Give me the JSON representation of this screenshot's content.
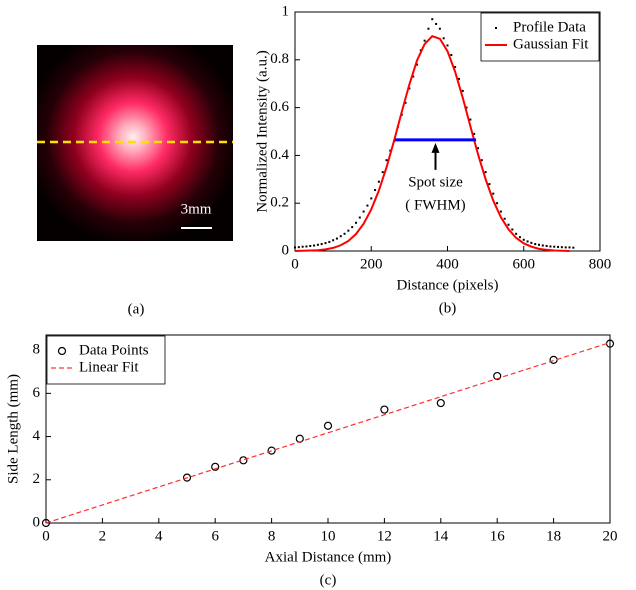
{
  "chart_data": [
    {
      "type": "image",
      "annotation": "3mm",
      "caption": "(a)",
      "line_color": "#ffe000"
    },
    {
      "type": "scatter",
      "xlabel": "Distance (pixels)",
      "ylabel": "Normalized Intensity (a.u.)",
      "caption": "(b)",
      "xlim": [
        0,
        800
      ],
      "xticks": [
        0,
        200,
        400,
        600,
        800
      ],
      "ylim": [
        0,
        1
      ],
      "yticks": [
        0,
        0.2,
        0.4,
        0.6,
        0.8,
        1
      ],
      "grid": false,
      "legend": "upper right",
      "series": [
        {
          "name": "Profile Data",
          "style": "dots",
          "color": "#000000",
          "x": [
            0,
            10,
            20,
            30,
            40,
            50,
            60,
            70,
            80,
            90,
            100,
            110,
            120,
            130,
            140,
            150,
            160,
            170,
            180,
            190,
            200,
            210,
            220,
            230,
            240,
            250,
            260,
            270,
            280,
            290,
            300,
            310,
            320,
            330,
            340,
            350,
            360,
            370,
            380,
            390,
            400,
            410,
            420,
            430,
            440,
            450,
            460,
            470,
            480,
            490,
            500,
            510,
            520,
            530,
            540,
            550,
            560,
            570,
            580,
            590,
            600,
            610,
            620,
            630,
            640,
            650,
            660,
            670,
            680,
            690,
            700,
            710,
            720,
            730
          ],
          "values": [
            0.015,
            0.016,
            0.018,
            0.019,
            0.021,
            0.023,
            0.026,
            0.029,
            0.033,
            0.038,
            0.045,
            0.052,
            0.062,
            0.072,
            0.085,
            0.1,
            0.118,
            0.14,
            0.165,
            0.19,
            0.22,
            0.255,
            0.29,
            0.33,
            0.38,
            0.42,
            0.46,
            0.52,
            0.57,
            0.62,
            0.68,
            0.73,
            0.78,
            0.84,
            0.88,
            0.93,
            0.97,
            0.95,
            0.93,
            0.89,
            0.86,
            0.82,
            0.77,
            0.72,
            0.67,
            0.6,
            0.55,
            0.49,
            0.43,
            0.38,
            0.33,
            0.28,
            0.24,
            0.2,
            0.165,
            0.135,
            0.11,
            0.09,
            0.072,
            0.058,
            0.047,
            0.04,
            0.034,
            0.029,
            0.026,
            0.023,
            0.021,
            0.019,
            0.018,
            0.017,
            0.016,
            0.015,
            0.015,
            0.014
          ]
        },
        {
          "name": "Gaussian Fit",
          "style": "line",
          "color": "#ff0000",
          "x": [
            0,
            20,
            40,
            60,
            80,
            100,
            120,
            140,
            160,
            180,
            200,
            220,
            240,
            260,
            280,
            300,
            320,
            340,
            360,
            380,
            400,
            420,
            440,
            460,
            480,
            500,
            520,
            540,
            560,
            580,
            600,
            620,
            640,
            660,
            680,
            700,
            720
          ],
          "values": [
            0.0,
            0.001,
            0.002,
            0.003,
            0.007,
            0.013,
            0.024,
            0.042,
            0.071,
            0.114,
            0.174,
            0.253,
            0.35,
            0.462,
            0.582,
            0.697,
            0.797,
            0.866,
            0.899,
            0.888,
            0.836,
            0.75,
            0.641,
            0.522,
            0.405,
            0.3,
            0.211,
            0.141,
            0.091,
            0.055,
            0.032,
            0.018,
            0.009,
            0.005,
            0.002,
            0.001,
            0.0
          ]
        }
      ],
      "fwhm": {
        "x": [
          262,
          475
        ],
        "values": [
          0.465,
          0.465
        ],
        "color": "#0000ff"
      },
      "annotation": [
        "Spot size",
        "( FWHM)"
      ]
    },
    {
      "type": "scatter",
      "xlabel": "Axial Distance (mm)",
      "ylabel": "Side Length (mm)",
      "caption": "(c)",
      "xlim": [
        0,
        20
      ],
      "xticks": [
        0,
        2,
        4,
        6,
        8,
        10,
        12,
        14,
        16,
        18,
        20
      ],
      "ylim": [
        0,
        8.7
      ],
      "yticks": [
        0,
        2,
        4,
        6,
        8
      ],
      "grid": false,
      "legend": "upper left",
      "series": [
        {
          "name": "Data Points",
          "style": "circles",
          "color": "#000000",
          "x": [
            0,
            5,
            6,
            7,
            8,
            9,
            10,
            12,
            14,
            16,
            18,
            20
          ],
          "values": [
            0,
            2.1,
            2.6,
            2.9,
            3.35,
            3.9,
            4.5,
            5.25,
            5.55,
            6.8,
            7.55,
            8.3
          ]
        },
        {
          "name": "Linear Fit",
          "style": "dashed",
          "color": "#ff3030",
          "x": [
            0,
            20
          ],
          "values": [
            0,
            8.35
          ]
        }
      ]
    }
  ]
}
